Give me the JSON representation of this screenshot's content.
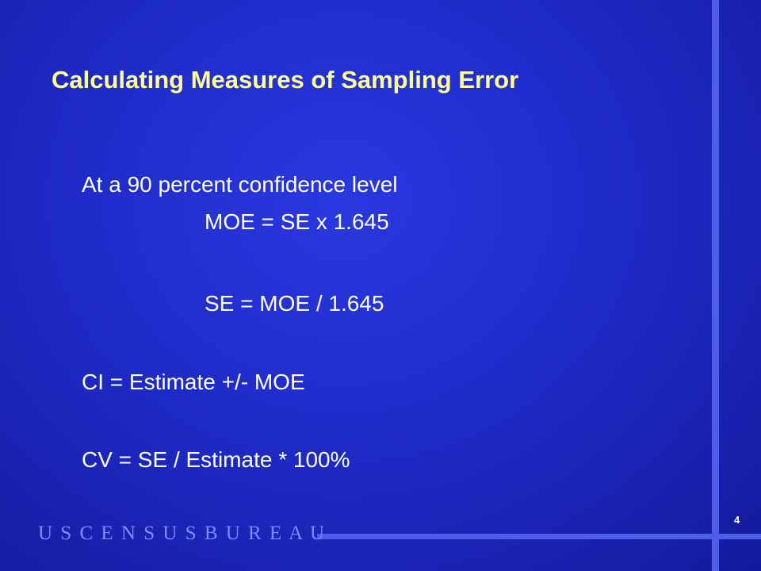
{
  "slide": {
    "title": "Calculating Measures of Sampling Error",
    "body": [
      "At a 90 percent confidence level",
      "MOE = SE x 1.645",
      "SE = MOE / 1.645",
      "CI = Estimate +/- MOE",
      "CV = SE / Estimate * 100%"
    ],
    "footer": "U S C E N S U S B U R E A U",
    "page_number": "4"
  }
}
